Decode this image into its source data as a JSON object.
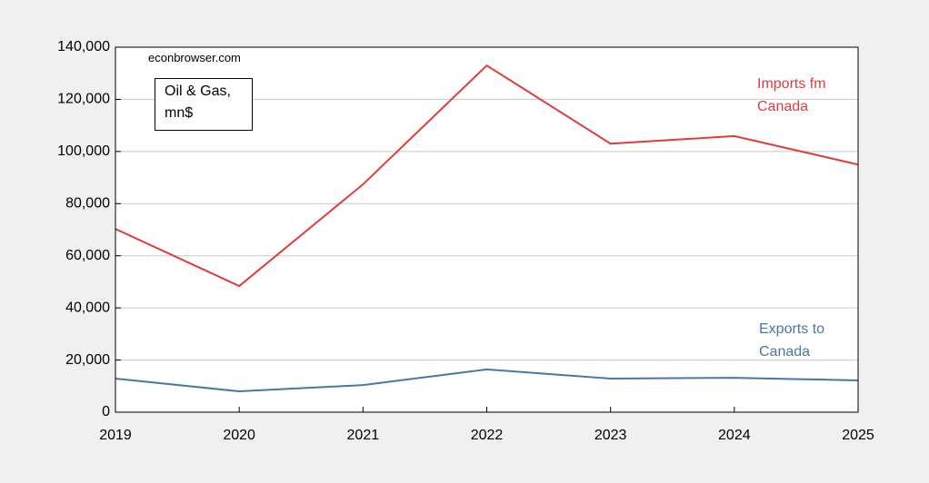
{
  "chart_data": {
    "type": "line",
    "annotations": [
      "econbrowser.com",
      "Oil & Gas, mn$"
    ],
    "x": [
      2019,
      2020,
      2021,
      2022,
      2023,
      2024,
      2025
    ],
    "series": [
      {
        "name": "Imports fm Canada",
        "color": "#e03c3c",
        "values": [
          70300,
          48400,
          87400,
          133000,
          103000,
          105900,
          95000
        ]
      },
      {
        "name": "Exports to Canada",
        "color": "#4a76a8",
        "values": [
          12900,
          8000,
          10400,
          16400,
          12900,
          13200,
          12200
        ]
      }
    ],
    "xlim": [
      2019,
      2025
    ],
    "xticks": [
      2019,
      2020,
      2021,
      2022,
      2023,
      2024,
      2025
    ],
    "ylim": [
      0,
      140000
    ],
    "yticks": [
      0,
      {
        "value": 20000,
        "label": "20,000"
      },
      {
        "value": 40000,
        "label": "40,000"
      },
      {
        "value": 60000,
        "label": "60,000"
      },
      {
        "value": 80000,
        "label": "80,000"
      },
      {
        "value": 100000,
        "label": "100,000"
      },
      {
        "value": 120000,
        "label": "120,000"
      },
      {
        "value": 140000,
        "label": "140,000"
      }
    ],
    "grid": true
  }
}
